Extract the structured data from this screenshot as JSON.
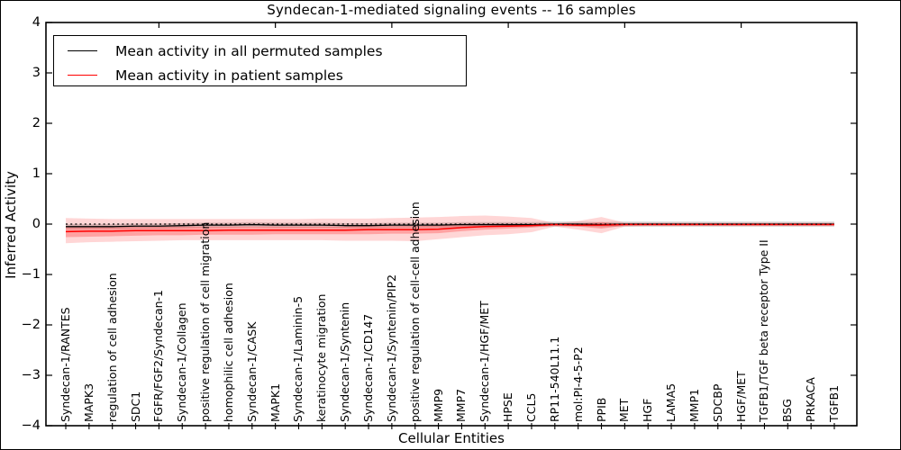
{
  "title": "Syndecan-1-mediated signaling events -- 16 samples",
  "axes": {
    "x_label": "Cellular Entities",
    "y_label": "Inferred Activity"
  },
  "legend": {
    "position": "upper left",
    "items": [
      {
        "label": "Mean activity in all permuted samples",
        "color": "#000000"
      },
      {
        "label": "Mean activity in patient samples",
        "color": "#ff0000"
      }
    ]
  },
  "colors": {
    "permuted_line": "#000000",
    "patient_line": "#ff0000",
    "permuted_band_fill": "rgba(120,120,120,0.30)",
    "patient_band_fill": "rgba(255,30,30,0.18)",
    "patient_inner_band_fill": "rgba(255,30,30,0.28)",
    "zero_line": "#000000",
    "spine": "#000000"
  },
  "chart_data": {
    "type": "line",
    "title": "Syndecan-1-mediated signaling events -- 16 samples",
    "xlabel": "Cellular Entities",
    "ylabel": "Inferred Activity",
    "ylim": [
      -4,
      4
    ],
    "yticks": [
      4,
      3,
      2,
      1,
      0,
      -1,
      -2,
      -3,
      -4
    ],
    "ytick_labels": [
      "4",
      "3",
      "2",
      "1",
      "0",
      "−1",
      "−2",
      "−3",
      "−4"
    ],
    "grid": false,
    "legend_position": "upper left",
    "zero_line": {
      "y": 0,
      "style": "dotted",
      "color": "#000000"
    },
    "categories": [
      "Syndecan-1/RANTES",
      "MAPK3",
      "regulation of cell adhesion",
      "SDC1",
      "FGFR/FGF2/Syndecan-1",
      "Syndecan-1/Collagen",
      "positive regulation of cell migration",
      "homophilic cell adhesion",
      "Syndecan-1/CASK",
      "MAPK1",
      "Syndecan-1/Laminin-5",
      "keratinocyte migration",
      "Syndecan-1/Syntenin",
      "Syndecan-1/CD147",
      "Syndecan-1/Syntenin/PIP2",
      "positive regulation of cell-cell adhesion",
      "MMP9",
      "MMP7",
      "Syndecan-1/HGF/MET",
      "HPSE",
      "CCL5",
      "RP11-540L11.1",
      "mol:PI-4-5-P2",
      "PPIB",
      "MET",
      "HGF",
      "LAMA5",
      "MMP1",
      "SDCBP",
      "HGF/MET",
      "TGFB1/TGF beta receptor Type II",
      "BSG",
      "PRKACA",
      "TGFB1"
    ],
    "series": [
      {
        "name": "Mean activity in all permuted samples",
        "color": "#000000",
        "values": [
          -0.05,
          -0.05,
          -0.05,
          -0.04,
          -0.04,
          -0.03,
          -0.02,
          -0.02,
          -0.01,
          -0.02,
          -0.02,
          -0.02,
          -0.03,
          -0.03,
          -0.02,
          -0.02,
          -0.02,
          -0.01,
          -0.01,
          -0.01,
          -0.01,
          0,
          0,
          -0.01,
          0,
          0,
          0,
          0,
          0,
          0,
          0,
          0,
          0,
          0
        ],
        "band": {
          "top": [
            0,
            0,
            0,
            0.01,
            0.01,
            0.02,
            0.03,
            0.03,
            0.04,
            0.03,
            0.03,
            0.03,
            0.02,
            0.02,
            0.03,
            0.03,
            0.03,
            0.04,
            0.04,
            0.04,
            0.04,
            0.05,
            0.05,
            0.04,
            0.05,
            0.05,
            0.05,
            0.05,
            0.05,
            0.05,
            0.05,
            0.05,
            0.05,
            0.05
          ],
          "bottom": [
            -0.1,
            -0.1,
            -0.1,
            -0.09,
            -0.09,
            -0.08,
            -0.07,
            -0.07,
            -0.06,
            -0.07,
            -0.07,
            -0.07,
            -0.08,
            -0.08,
            -0.07,
            -0.07,
            -0.07,
            -0.06,
            -0.06,
            -0.06,
            -0.06,
            -0.05,
            -0.05,
            -0.06,
            -0.05,
            -0.05,
            -0.05,
            -0.05,
            -0.05,
            -0.05,
            -0.05,
            -0.05,
            -0.05,
            -0.05
          ]
        }
      },
      {
        "name": "Mean activity in patient samples",
        "color": "#ff0000",
        "values": [
          -0.15,
          -0.14,
          -0.14,
          -0.13,
          -0.13,
          -0.13,
          -0.13,
          -0.12,
          -0.12,
          -0.12,
          -0.12,
          -0.12,
          -0.12,
          -0.11,
          -0.11,
          -0.11,
          -0.1,
          -0.07,
          -0.05,
          -0.04,
          -0.03,
          -0.01,
          -0.02,
          -0.02,
          -0.01,
          -0.01,
          -0.01,
          -0.01,
          -0.01,
          -0.01,
          -0.01,
          -0.01,
          -0.01,
          -0.01
        ],
        "band": {
          "top": [
            0.12,
            0.11,
            0.1,
            0.1,
            0.1,
            0.1,
            0.1,
            0.1,
            0.1,
            0.1,
            0.1,
            0.11,
            0.11,
            0.11,
            0.12,
            0.13,
            0.14,
            0.16,
            0.17,
            0.15,
            0.12,
            0.02,
            0.06,
            0.14,
            0.03,
            0.03,
            0.03,
            0.03,
            0.03,
            0.03,
            0.03,
            0.03,
            0.03,
            0.03
          ],
          "bottom": [
            -0.38,
            -0.36,
            -0.35,
            -0.34,
            -0.33,
            -0.32,
            -0.32,
            -0.32,
            -0.32,
            -0.32,
            -0.32,
            -0.32,
            -0.33,
            -0.33,
            -0.33,
            -0.34,
            -0.3,
            -0.26,
            -0.22,
            -0.2,
            -0.16,
            -0.05,
            -0.11,
            -0.18,
            -0.05,
            -0.04,
            -0.04,
            -0.04,
            -0.04,
            -0.04,
            -0.04,
            -0.04,
            -0.04,
            -0.04
          ]
        },
        "inner_band": {
          "top": [
            -0.05,
            -0.05,
            -0.05,
            -0.05,
            -0.05,
            -0.05,
            -0.05,
            -0.05,
            -0.05,
            -0.05,
            -0.05,
            -0.05,
            -0.05,
            -0.04,
            -0.04,
            -0.04,
            -0.03,
            -0.01,
            0,
            0,
            0,
            0,
            0.01,
            0.04,
            0,
            0,
            0,
            0,
            0,
            0,
            0,
            0,
            0,
            0
          ],
          "bottom": [
            -0.26,
            -0.25,
            -0.24,
            -0.23,
            -0.22,
            -0.22,
            -0.21,
            -0.21,
            -0.21,
            -0.2,
            -0.2,
            -0.2,
            -0.2,
            -0.2,
            -0.19,
            -0.19,
            -0.18,
            -0.14,
            -0.11,
            -0.09,
            -0.07,
            -0.03,
            -0.05,
            -0.09,
            -0.03,
            -0.02,
            -0.02,
            -0.02,
            -0.02,
            -0.02,
            -0.02,
            -0.02,
            -0.02,
            -0.02
          ]
        }
      }
    ]
  }
}
